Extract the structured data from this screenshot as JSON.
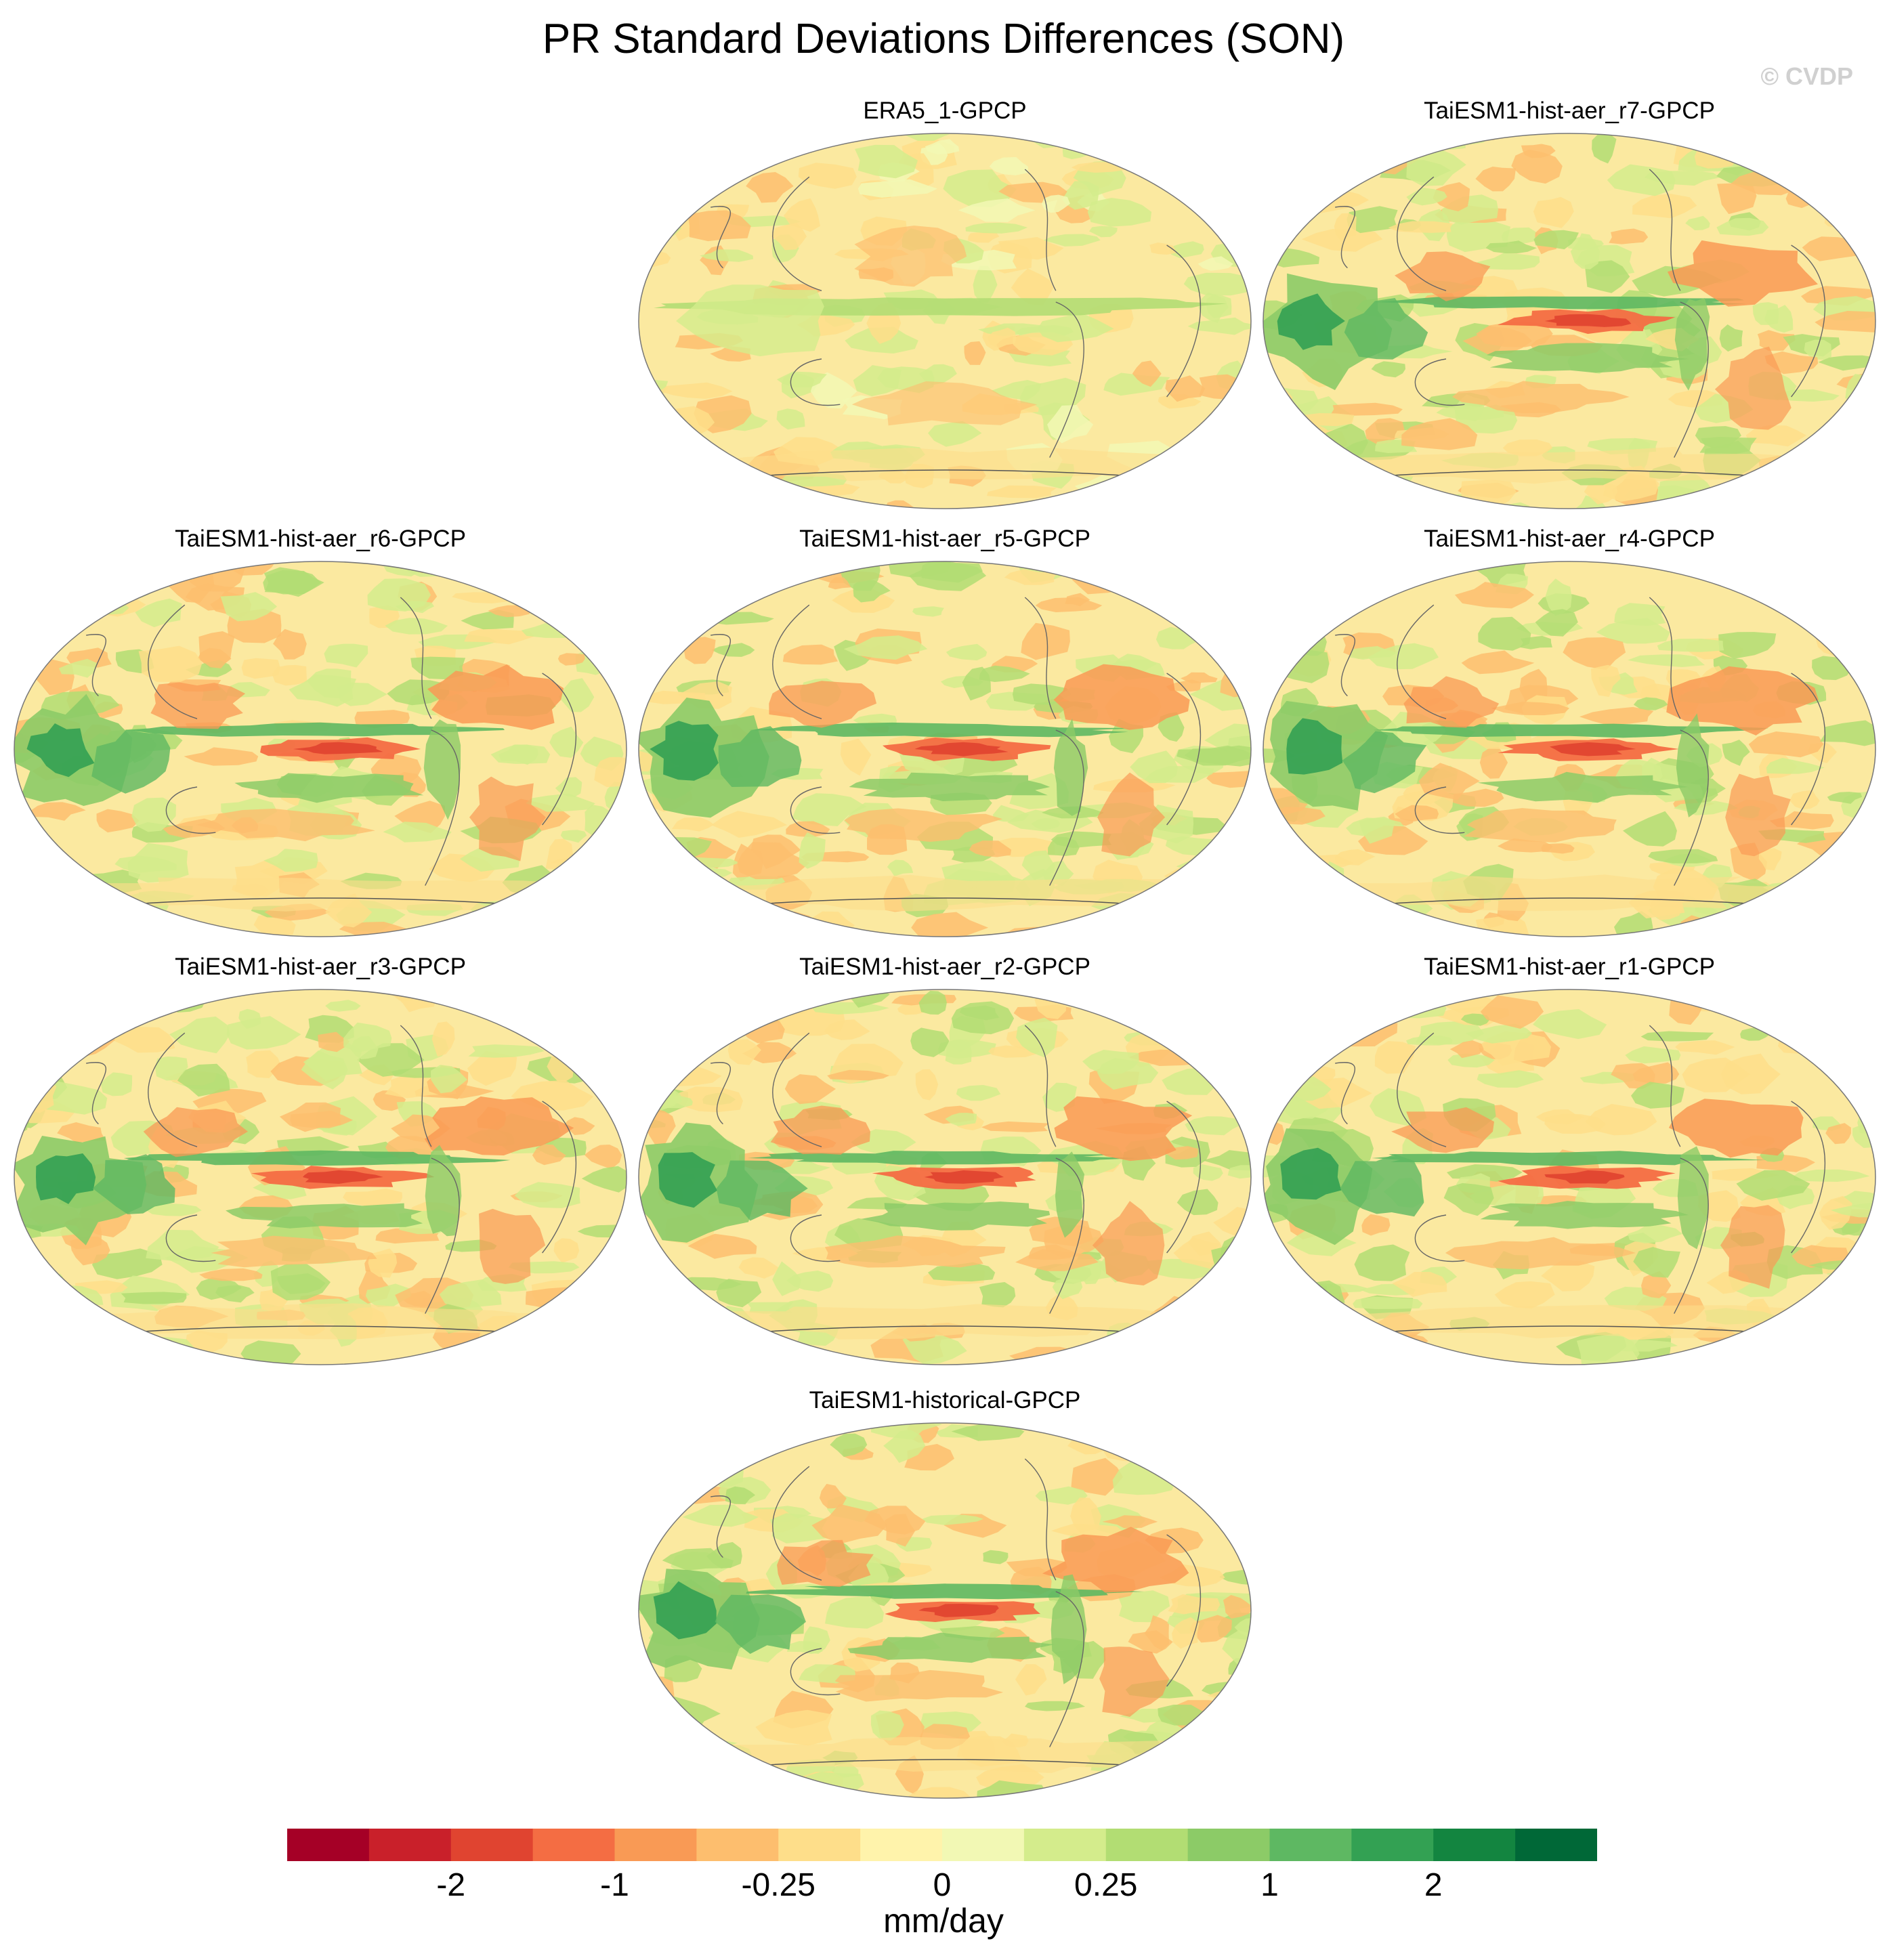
{
  "title": "PR Standard Deviations Differences (SON)",
  "watermark": "© CVDP",
  "panels": [
    {
      "id": "era5",
      "label": "ERA5_1-GPCP",
      "row": 0,
      "col": 1,
      "variant": "obs"
    },
    {
      "id": "r7",
      "label": "TaiESM1-hist-aer_r7-GPCP",
      "row": 0,
      "col": 2,
      "variant": "model"
    },
    {
      "id": "r6",
      "label": "TaiESM1-hist-aer_r6-GPCP",
      "row": 1,
      "col": 0,
      "variant": "model"
    },
    {
      "id": "r5",
      "label": "TaiESM1-hist-aer_r5-GPCP",
      "row": 1,
      "col": 1,
      "variant": "model"
    },
    {
      "id": "r4",
      "label": "TaiESM1-hist-aer_r4-GPCP",
      "row": 1,
      "col": 2,
      "variant": "model"
    },
    {
      "id": "r3",
      "label": "TaiESM1-hist-aer_r3-GPCP",
      "row": 2,
      "col": 0,
      "variant": "model"
    },
    {
      "id": "r2",
      "label": "TaiESM1-hist-aer_r2-GPCP",
      "row": 2,
      "col": 1,
      "variant": "model"
    },
    {
      "id": "r1",
      "label": "TaiESM1-hist-aer_r1-GPCP",
      "row": 2,
      "col": 2,
      "variant": "model"
    },
    {
      "id": "historical",
      "label": "TaiESM1-historical-GPCP",
      "row": 3,
      "col": 1,
      "variant": "model"
    }
  ],
  "colorbar": {
    "colors": [
      "#a50026",
      "#c9202a",
      "#e04430",
      "#f46d43",
      "#f99a55",
      "#fdbe6e",
      "#fede8a",
      "#fff3ab",
      "#f2f8b4",
      "#d4ec8c",
      "#b2dd73",
      "#8ccb67",
      "#5eb862",
      "#33a153",
      "#138540",
      "#006837"
    ],
    "tick_labels": [
      {
        "text": "-2",
        "boundary": 2
      },
      {
        "text": "-1",
        "boundary": 4
      },
      {
        "text": "-0.25",
        "boundary": 6
      },
      {
        "text": "0",
        "boundary": 8
      },
      {
        "text": "0.25",
        "boundary": 10
      },
      {
        "text": "1",
        "boundary": 12
      },
      {
        "text": "2",
        "boundary": 14
      }
    ],
    "units": "mm/day"
  }
}
